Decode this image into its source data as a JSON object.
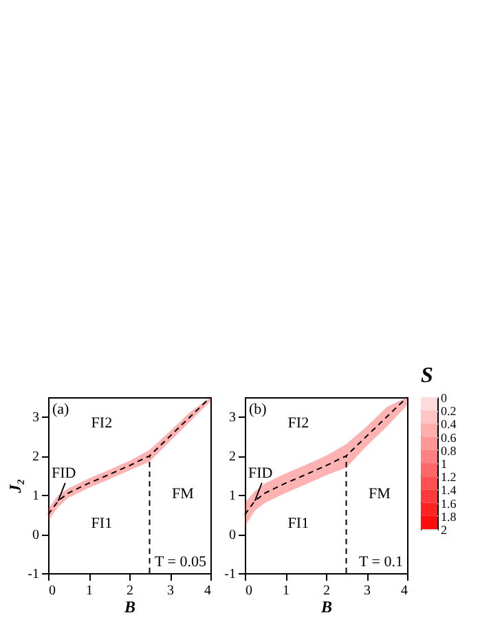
{
  "chart_data": [
    {
      "type": "line",
      "xlabel": "B",
      "ylabel": "J₂",
      "xlim": [
        0,
        4
      ],
      "ylim": [
        -1,
        3.5
      ],
      "xticks": [
        0,
        1,
        2,
        3,
        4
      ],
      "yticks": [
        -1,
        0,
        1,
        2,
        3
      ],
      "grid": false,
      "line_style": "dashed",
      "marker": "none",
      "annotations": [
        "(a)",
        "T = 0.05",
        "FI2",
        "FI1",
        "FM",
        {
          "text": "FID",
          "x": 0.25,
          "y": 0.85
        }
      ],
      "series": [
        {
          "color": "#000000",
          "x": [
            0,
            0.25,
            0.5,
            1,
            1.5,
            2,
            2.5,
            3,
            3.5,
            4
          ],
          "values": [
            0.5,
            0.85,
            1.05,
            1.3,
            1.52,
            1.75,
            2.0,
            2.5,
            3.0,
            3.5
          ],
          "lower": [
            0.35,
            0.7,
            0.93,
            1.18,
            1.4,
            1.63,
            1.85,
            2.37,
            2.88,
            3.4
          ],
          "upper": [
            0.65,
            1.0,
            1.17,
            1.42,
            1.64,
            1.87,
            2.15,
            2.63,
            3.12,
            3.5
          ]
        },
        {
          "color": "#000000",
          "x": [
            2.5,
            2.5
          ],
          "values": [
            -1,
            2.0
          ]
        }
      ]
    },
    {
      "type": "line",
      "xlabel": "B",
      "xlim": [
        0,
        4
      ],
      "ylim": [
        -1,
        3.5
      ],
      "xticks": [
        0,
        1,
        2,
        3,
        4
      ],
      "yticks": [
        -1,
        0,
        1,
        2,
        3
      ],
      "grid": false,
      "line_style": "dashed",
      "marker": "none",
      "clabel": "S",
      "clim": [
        0,
        2
      ],
      "cticks": [
        0,
        0.2,
        0.4,
        0.6,
        0.8,
        1,
        1.2,
        1.4,
        1.6,
        1.8,
        2
      ],
      "annotations": [
        "(b)",
        "T = 0.1",
        "FI2",
        "FI1",
        "FM",
        {
          "text": "FID",
          "x": 0.25,
          "y": 0.85
        }
      ],
      "series": [
        {
          "color": "#000000",
          "x": [
            0,
            0.25,
            0.5,
            1,
            1.5,
            2,
            2.5,
            3,
            3.5,
            4
          ],
          "values": [
            0.5,
            0.85,
            1.05,
            1.3,
            1.52,
            1.75,
            2.0,
            2.5,
            3.0,
            3.5
          ],
          "lower": [
            0.2,
            0.6,
            0.8,
            1.05,
            1.27,
            1.5,
            1.7,
            2.25,
            2.75,
            3.3
          ],
          "upper": [
            0.8,
            1.1,
            1.3,
            1.55,
            1.77,
            2.0,
            2.3,
            2.75,
            3.25,
            3.5
          ]
        },
        {
          "color": "#000000",
          "x": [
            2.5,
            2.5
          ],
          "values": [
            -1,
            2.0
          ]
        }
      ]
    }
  ]
}
